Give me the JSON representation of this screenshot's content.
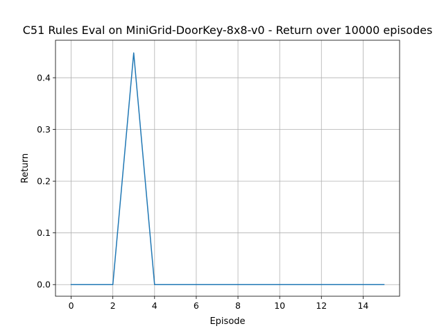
{
  "chart_data": {
    "type": "line",
    "title": "C51 Rules Eval on MiniGrid-DoorKey-8x8-v0 - Return over 10000 episodes",
    "xlabel": "Episode",
    "ylabel": "Return",
    "xlim": [
      -0.75,
      15.75
    ],
    "ylim": [
      -0.0225,
      0.4725
    ],
    "xticks": [
      0,
      2,
      4,
      6,
      8,
      10,
      12,
      14
    ],
    "xtick_labels": [
      "0",
      "2",
      "4",
      "6",
      "8",
      "10",
      "12",
      "14"
    ],
    "yticks": [
      0.0,
      0.1,
      0.2,
      0.3,
      0.4
    ],
    "ytick_labels": [
      "0.0",
      "0.1",
      "0.2",
      "0.3",
      "0.4"
    ],
    "grid": true,
    "legend": "none",
    "series": [
      {
        "color": "#1f77b4",
        "x": [
          0,
          1,
          2,
          3,
          4,
          5,
          6,
          7,
          8,
          9,
          10,
          11,
          12,
          13,
          14,
          15
        ],
        "y": [
          0.0,
          0.0,
          0.0,
          0.448,
          0.0,
          0.0,
          0.0,
          0.0,
          0.0,
          0.0,
          0.0,
          0.0,
          0.0,
          0.0,
          0.0,
          0.0
        ]
      }
    ]
  }
}
